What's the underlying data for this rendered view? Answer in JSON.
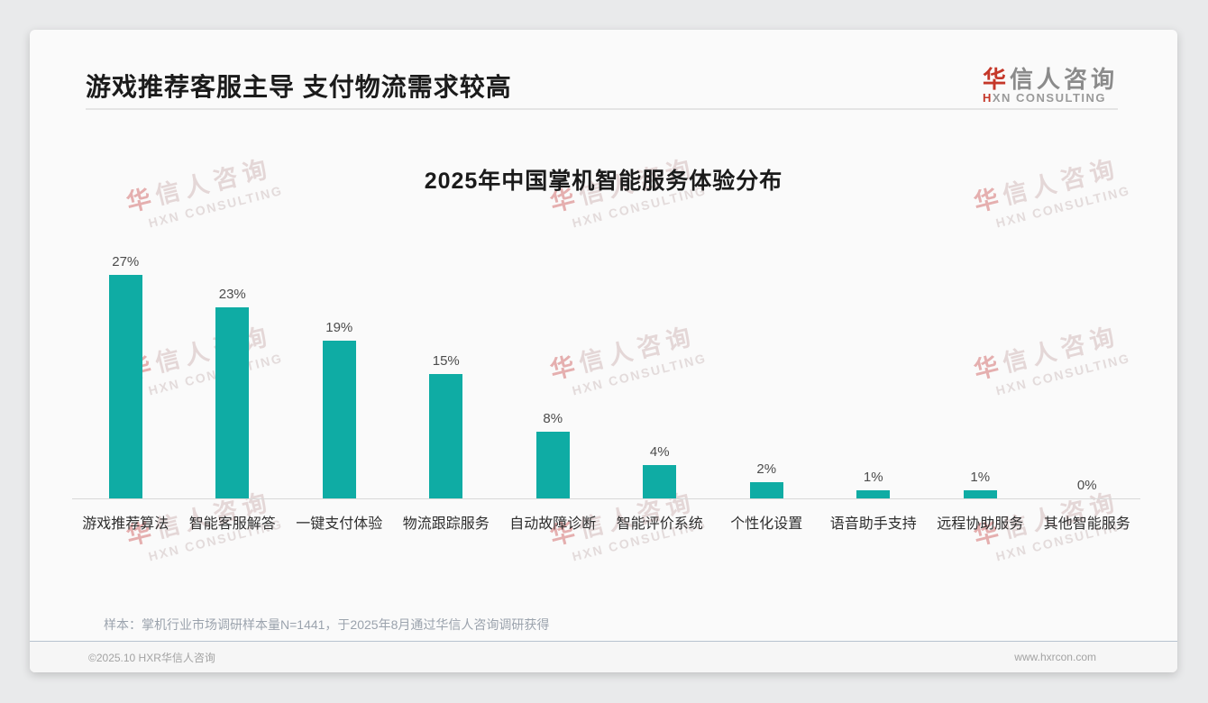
{
  "header": {
    "title": "游戏推荐客服主导 支付物流需求较高",
    "logo": {
      "cn_first": "华",
      "cn_rest": "信人咨询",
      "en_first": "H",
      "en_rest": "XN CONSULTING"
    }
  },
  "chart_data": {
    "type": "bar",
    "title": "2025年中国掌机智能服务体验分布",
    "categories": [
      "游戏推荐算法",
      "智能客服解答",
      "一键支付体验",
      "物流跟踪服务",
      "自动故障诊断",
      "智能评价系统",
      "个性化设置",
      "语音助手支持",
      "远程协助服务",
      "其他智能服务"
    ],
    "values": [
      27,
      23,
      19,
      15,
      8,
      4,
      2,
      1,
      1,
      0
    ],
    "unit": "%",
    "data_labels": true,
    "bar_color": "#0faca4",
    "xlabel": "",
    "ylabel": "",
    "ylim": [
      0,
      30
    ],
    "grid": false,
    "legend": "none"
  },
  "watermark": {
    "cn_first": "华",
    "cn_rest": "信人咨询",
    "en": "HXN CONSULTING"
  },
  "footnote": "样本：掌机行业市场调研样本量N=1441，于2025年8月通过华信人咨询调研获得",
  "footer": {
    "copyright": "©2025.10 HXR华信人咨询",
    "website": "www.hxrcon.com"
  }
}
